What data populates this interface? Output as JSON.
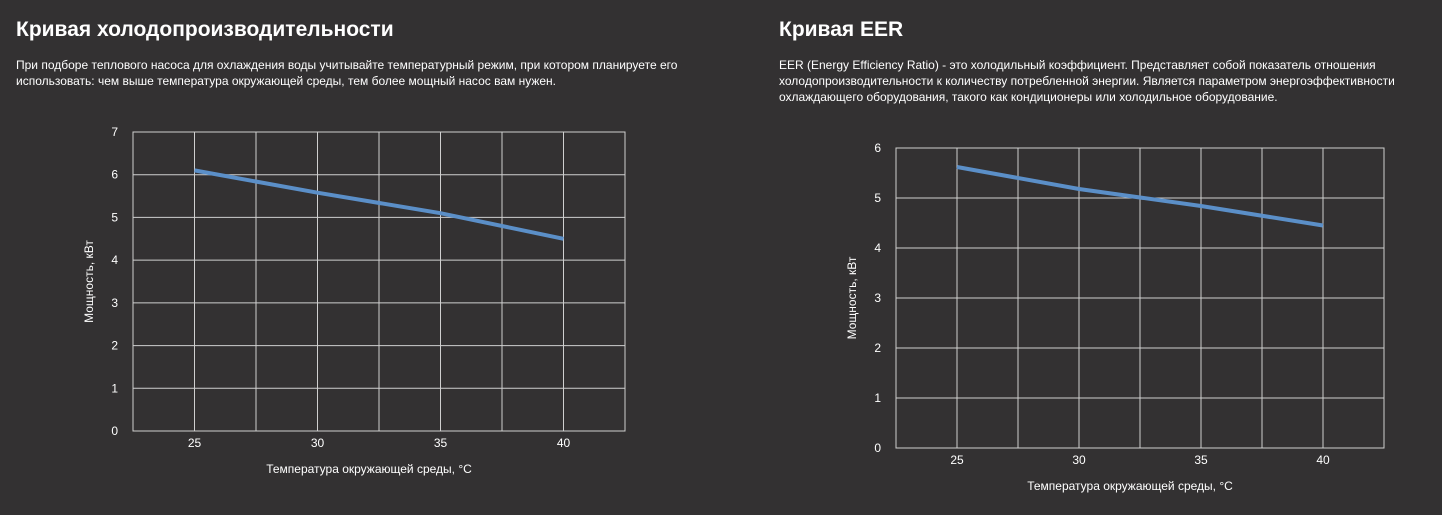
{
  "left": {
    "title": "Кривая холодопроизводительности",
    "description": "При подборе теплового насоса для охлаждения воды учитывайте температурный режим, при котором планируете его использовать: чем выше температура окружающей среды, тем более мощный насос вам нужен.",
    "chart_data": {
      "type": "line",
      "xlabel": "Температура окружающей среды, °C",
      "ylabel": "Мощность, кВт",
      "x_ticks": [
        25,
        30,
        35,
        40
      ],
      "y_ticks": [
        0,
        1,
        2,
        3,
        4,
        5,
        6,
        7
      ],
      "xlim": [
        22.5,
        42.5
      ],
      "ylim": [
        0,
        7
      ],
      "grid": true,
      "series": [
        {
          "x": [
            25,
            30,
            35,
            40
          ],
          "y": [
            6.1,
            5.58,
            5.1,
            4.5
          ],
          "color": "#5b8fc8"
        }
      ]
    }
  },
  "right": {
    "title": "Кривая EER",
    "description": "EER (Energy Efficiency Ratio) - это холодильный коэффициент. Представляет собой показатель отношения холодопроизводительности к количеству потребленной энергии. Является параметром энергоэффективности охлаждающего оборудования, такого как кондиционеры или холодильное оборудование.",
    "chart_data": {
      "type": "line",
      "xlabel": "Температура окружающей среды, °C",
      "ylabel": "Мощность, кВт",
      "x_ticks": [
        25,
        30,
        35,
        40
      ],
      "y_ticks": [
        0,
        1,
        2,
        3,
        4,
        5,
        6
      ],
      "xlim": [
        22.5,
        42.5
      ],
      "ylim": [
        0,
        6
      ],
      "grid": true,
      "series": [
        {
          "x": [
            25,
            30,
            35,
            40
          ],
          "y": [
            5.62,
            5.18,
            4.84,
            4.45
          ],
          "color": "#5b8fc8"
        }
      ]
    }
  }
}
